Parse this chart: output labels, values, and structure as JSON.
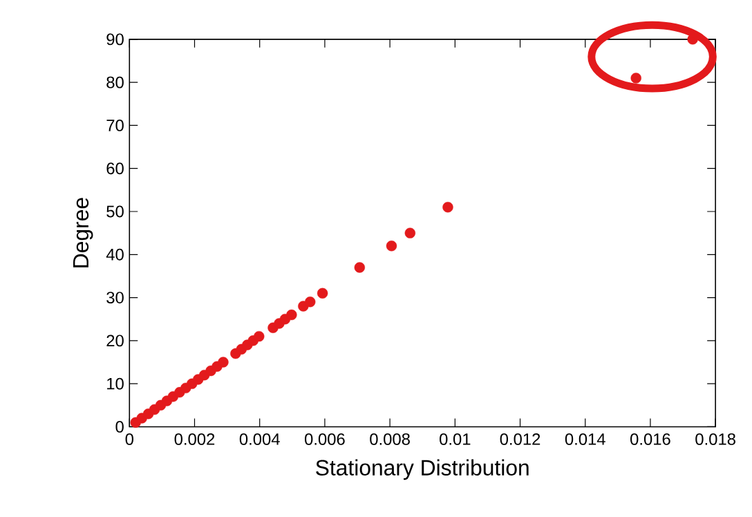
{
  "chart_data": {
    "type": "scatter",
    "xlabel": "Stationary Distribution",
    "ylabel": "Degree",
    "x": [
      0.00019,
      0.00038,
      0.00058,
      0.00077,
      0.00096,
      0.00115,
      0.00134,
      0.00154,
      0.00173,
      0.00192,
      0.00211,
      0.0023,
      0.0025,
      0.00269,
      0.00288,
      0.00326,
      0.00344,
      0.00362,
      0.0038,
      0.00398,
      0.00441,
      0.0046,
      0.00478,
      0.00498,
      0.00534,
      0.00555,
      0.00593,
      0.00707,
      0.00805,
      0.00862,
      0.00978,
      0.01556,
      0.0173
    ],
    "series": [
      {
        "color": "#e31a1c",
        "values": [
          1,
          2,
          3,
          4,
          5,
          6,
          7,
          8,
          9,
          10,
          11,
          12,
          13,
          14,
          15,
          17,
          18,
          19,
          20,
          21,
          23,
          24,
          25,
          26,
          28,
          29,
          31,
          37,
          42,
          45,
          51,
          81,
          90
        ]
      }
    ],
    "marker": "circle",
    "xlim": [
      0,
      0.018
    ],
    "ylim": [
      0,
      90
    ],
    "xticks": [
      0,
      0.002,
      0.004,
      0.006,
      0.008,
      0.01,
      0.012,
      0.014,
      0.016,
      0.018
    ],
    "yticks": [
      0,
      10,
      20,
      30,
      40,
      50,
      60,
      70,
      80,
      90
    ]
  }
}
